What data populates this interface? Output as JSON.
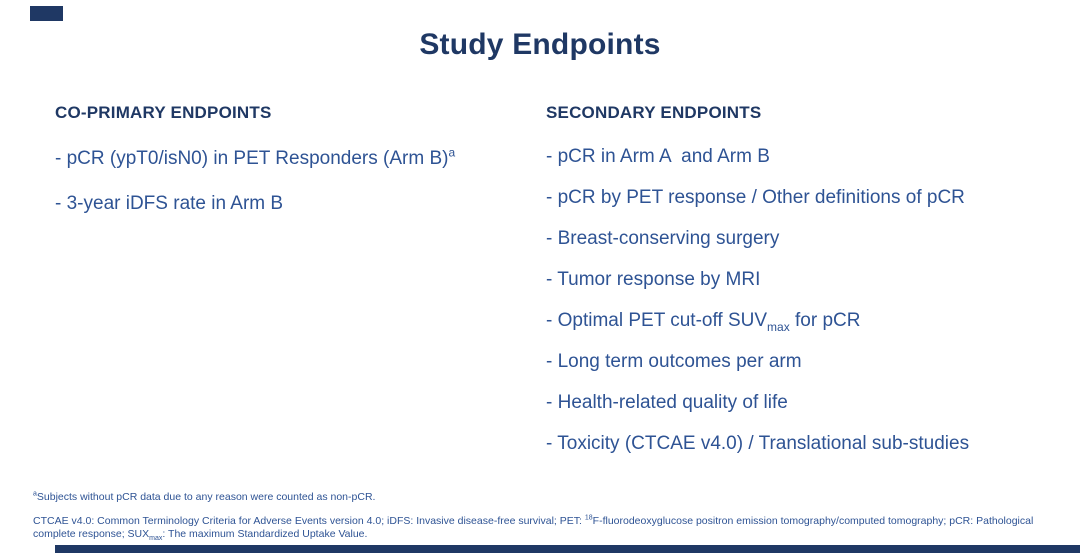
{
  "slide": {
    "title": "Study Endpoints"
  },
  "colors": {
    "heading": "#1f3864",
    "body_text": "#2e5394",
    "footer_bar": "#1f3864",
    "background": "#ffffff"
  },
  "co_primary": {
    "heading": "CO-PRIMARY ENDPOINTS",
    "items": [
      {
        "text": "- pCR (ypT0/isN0) in PET Responders (Arm B)",
        "sup": "a"
      },
      {
        "text": "- 3-year iDFS rate in Arm B"
      }
    ]
  },
  "secondary": {
    "heading": "SECONDARY ENDPOINTS",
    "items": [
      {
        "text": "- pCR in Arm A  and Arm B"
      },
      {
        "text": "- pCR by PET response / Other definitions of pCR"
      },
      {
        "text": "- Breast-conserving surgery"
      },
      {
        "text": "- Tumor response by MRI"
      },
      {
        "pre": "- Optimal PET cut-off SUV",
        "sub": "max",
        "post": " for pCR"
      },
      {
        "text": "- Long term outcomes per arm"
      },
      {
        "text": "- Health-related quality of life"
      },
      {
        "text": "- Toxicity (CTCAE v4.0) / Translational sub-studies"
      }
    ]
  },
  "footnotes": {
    "a": {
      "sup": "a",
      "text": "Subjects without pCR data due to any reason were counted as non-pCR."
    },
    "abbreviations": {
      "part1": "CTCAE v4.0: Common Terminology Criteria for Adverse Events version 4.0; iDFS: Invasive disease-free survival; PET: ",
      "sup": "18",
      "part2": "F-fluorodeoxyglucose positron emission tomography/computed tomography; pCR: Pathological complete response; SUX",
      "sub": "max",
      "part3": ": The maximum Standardized Uptake Value."
    }
  }
}
